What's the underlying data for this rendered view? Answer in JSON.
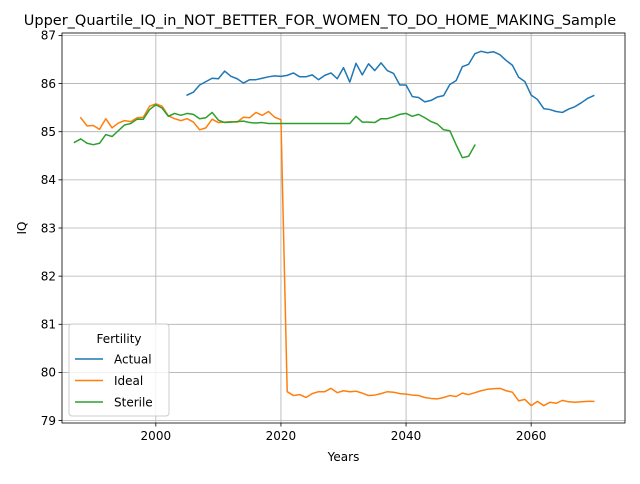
{
  "chart_data": {
    "type": "line",
    "title": "Upper_Quartile_IQ_in_NOT_BETTER_FOR_WOMEN_TO_DO_HOME_MAKING_Sample",
    "xlabel": "Years",
    "ylabel": "IQ",
    "xlim": [
      1985,
      2075
    ],
    "ylim": [
      78.95,
      87.05
    ],
    "xticks": [
      2000,
      2020,
      2040,
      2060
    ],
    "yticks": [
      79,
      80,
      81,
      82,
      83,
      84,
      85,
      86,
      87
    ],
    "grid": true,
    "legend": {
      "title": "Fertility",
      "position": "lower-left"
    },
    "series": [
      {
        "name": "Actual",
        "color": "#1f77b4",
        "points": [
          [
            2005,
            85.76
          ],
          [
            2006,
            85.82
          ],
          [
            2007,
            85.97
          ],
          [
            2008,
            86.04
          ],
          [
            2009,
            86.11
          ],
          [
            2010,
            86.1
          ],
          [
            2011,
            86.26
          ],
          [
            2012,
            86.15
          ],
          [
            2013,
            86.1
          ],
          [
            2014,
            86.01
          ],
          [
            2015,
            86.08
          ],
          [
            2016,
            86.08
          ],
          [
            2017,
            86.11
          ],
          [
            2018,
            86.14
          ],
          [
            2019,
            86.16
          ],
          [
            2020,
            86.15
          ],
          [
            2021,
            86.17
          ],
          [
            2022,
            86.22
          ],
          [
            2023,
            86.14
          ],
          [
            2024,
            86.14
          ],
          [
            2025,
            86.18
          ],
          [
            2026,
            86.08
          ],
          [
            2027,
            86.17
          ],
          [
            2028,
            86.22
          ],
          [
            2029,
            86.1
          ],
          [
            2030,
            86.33
          ],
          [
            2031,
            86.03
          ],
          [
            2032,
            86.42
          ],
          [
            2033,
            86.18
          ],
          [
            2034,
            86.41
          ],
          [
            2035,
            86.27
          ],
          [
            2036,
            86.43
          ],
          [
            2037,
            86.27
          ],
          [
            2038,
            86.21
          ],
          [
            2039,
            85.97
          ],
          [
            2040,
            85.97
          ],
          [
            2041,
            85.73
          ],
          [
            2042,
            85.71
          ],
          [
            2043,
            85.62
          ],
          [
            2044,
            85.65
          ],
          [
            2045,
            85.72
          ],
          [
            2046,
            85.75
          ],
          [
            2047,
            85.98
          ],
          [
            2048,
            86.06
          ],
          [
            2049,
            86.35
          ],
          [
            2050,
            86.4
          ],
          [
            2051,
            86.62
          ],
          [
            2052,
            86.67
          ],
          [
            2053,
            86.64
          ],
          [
            2054,
            86.66
          ],
          [
            2055,
            86.6
          ],
          [
            2056,
            86.48
          ],
          [
            2057,
            86.38
          ],
          [
            2058,
            86.13
          ],
          [
            2059,
            86.04
          ],
          [
            2060,
            85.76
          ],
          [
            2061,
            85.67
          ],
          [
            2062,
            85.48
          ],
          [
            2063,
            85.46
          ],
          [
            2064,
            85.42
          ],
          [
            2065,
            85.4
          ],
          [
            2066,
            85.47
          ],
          [
            2067,
            85.52
          ],
          [
            2068,
            85.6
          ],
          [
            2069,
            85.69
          ],
          [
            2070,
            85.75
          ]
        ]
      },
      {
        "name": "Ideal",
        "color": "#ff7f0e",
        "points": [
          [
            1988,
            85.29
          ],
          [
            1989,
            85.12
          ],
          [
            1990,
            85.13
          ],
          [
            1991,
            85.05
          ],
          [
            1992,
            85.27
          ],
          [
            1993,
            85.08
          ],
          [
            1994,
            85.18
          ],
          [
            1995,
            85.23
          ],
          [
            1996,
            85.21
          ],
          [
            1997,
            85.29
          ],
          [
            1998,
            85.3
          ],
          [
            1999,
            85.53
          ],
          [
            2000,
            85.58
          ],
          [
            2001,
            85.53
          ],
          [
            2002,
            85.33
          ],
          [
            2003,
            85.27
          ],
          [
            2004,
            85.23
          ],
          [
            2005,
            85.27
          ],
          [
            2006,
            85.2
          ],
          [
            2007,
            85.04
          ],
          [
            2008,
            85.08
          ],
          [
            2009,
            85.26
          ],
          [
            2010,
            85.19
          ],
          [
            2011,
            85.2
          ],
          [
            2012,
            85.21
          ],
          [
            2013,
            85.2
          ],
          [
            2014,
            85.3
          ],
          [
            2015,
            85.29
          ],
          [
            2016,
            85.4
          ],
          [
            2017,
            85.34
          ],
          [
            2018,
            85.42
          ],
          [
            2019,
            85.3
          ],
          [
            2020,
            85.25
          ],
          [
            2021,
            79.6
          ],
          [
            2022,
            79.52
          ],
          [
            2023,
            79.54
          ],
          [
            2024,
            79.48
          ],
          [
            2025,
            79.56
          ],
          [
            2026,
            79.6
          ],
          [
            2027,
            79.6
          ],
          [
            2028,
            79.67
          ],
          [
            2029,
            79.58
          ],
          [
            2030,
            79.62
          ],
          [
            2031,
            79.6
          ],
          [
            2032,
            79.61
          ],
          [
            2033,
            79.57
          ],
          [
            2034,
            79.52
          ],
          [
            2035,
            79.53
          ],
          [
            2036,
            79.56
          ],
          [
            2037,
            79.6
          ],
          [
            2038,
            79.59
          ],
          [
            2039,
            79.56
          ],
          [
            2040,
            79.55
          ],
          [
            2041,
            79.53
          ],
          [
            2042,
            79.52
          ],
          [
            2043,
            79.48
          ],
          [
            2044,
            79.46
          ],
          [
            2045,
            79.45
          ],
          [
            2046,
            79.48
          ],
          [
            2047,
            79.52
          ],
          [
            2048,
            79.5
          ],
          [
            2049,
            79.57
          ],
          [
            2050,
            79.54
          ],
          [
            2051,
            79.58
          ],
          [
            2052,
            79.62
          ],
          [
            2053,
            79.65
          ],
          [
            2054,
            79.66
          ],
          [
            2055,
            79.67
          ],
          [
            2056,
            79.62
          ],
          [
            2057,
            79.59
          ],
          [
            2058,
            79.41
          ],
          [
            2059,
            79.44
          ],
          [
            2060,
            79.31
          ],
          [
            2061,
            79.4
          ],
          [
            2062,
            79.31
          ],
          [
            2063,
            79.38
          ],
          [
            2064,
            79.36
          ],
          [
            2065,
            79.42
          ],
          [
            2066,
            79.39
          ],
          [
            2067,
            79.38
          ],
          [
            2068,
            79.39
          ],
          [
            2069,
            79.4
          ],
          [
            2070,
            79.4
          ]
        ]
      },
      {
        "name": "Sterile",
        "color": "#2ca02c",
        "points": [
          [
            1987,
            84.78
          ],
          [
            1988,
            84.85
          ],
          [
            1989,
            84.76
          ],
          [
            1990,
            84.73
          ],
          [
            1991,
            84.76
          ],
          [
            1992,
            84.94
          ],
          [
            1993,
            84.9
          ],
          [
            1994,
            85.02
          ],
          [
            1995,
            85.14
          ],
          [
            1996,
            85.17
          ],
          [
            1997,
            85.26
          ],
          [
            1998,
            85.26
          ],
          [
            1999,
            85.46
          ],
          [
            2000,
            85.56
          ],
          [
            2001,
            85.49
          ],
          [
            2002,
            85.32
          ],
          [
            2003,
            85.38
          ],
          [
            2004,
            85.34
          ],
          [
            2005,
            85.38
          ],
          [
            2006,
            85.36
          ],
          [
            2007,
            85.27
          ],
          [
            2008,
            85.29
          ],
          [
            2009,
            85.4
          ],
          [
            2010,
            85.24
          ],
          [
            2011,
            85.19
          ],
          [
            2012,
            85.2
          ],
          [
            2013,
            85.21
          ],
          [
            2014,
            85.22
          ],
          [
            2015,
            85.19
          ],
          [
            2016,
            85.18
          ],
          [
            2017,
            85.19
          ],
          [
            2018,
            85.17
          ],
          [
            2019,
            85.17
          ],
          [
            2020,
            85.17
          ],
          [
            2021,
            85.17
          ],
          [
            2022,
            85.17
          ],
          [
            2023,
            85.17
          ],
          [
            2024,
            85.17
          ],
          [
            2025,
            85.17
          ],
          [
            2026,
            85.17
          ],
          [
            2027,
            85.17
          ],
          [
            2028,
            85.17
          ],
          [
            2029,
            85.17
          ],
          [
            2030,
            85.17
          ],
          [
            2031,
            85.17
          ],
          [
            2032,
            85.32
          ],
          [
            2033,
            85.2
          ],
          [
            2034,
            85.2
          ],
          [
            2035,
            85.19
          ],
          [
            2036,
            85.27
          ],
          [
            2037,
            85.27
          ],
          [
            2038,
            85.31
          ],
          [
            2039,
            85.36
          ],
          [
            2040,
            85.38
          ],
          [
            2041,
            85.32
          ],
          [
            2042,
            85.36
          ],
          [
            2043,
            85.29
          ],
          [
            2044,
            85.21
          ],
          [
            2045,
            85.16
          ],
          [
            2046,
            85.04
          ],
          [
            2047,
            85.02
          ],
          [
            2048,
            84.73
          ],
          [
            2049,
            84.46
          ],
          [
            2050,
            84.49
          ],
          [
            2051,
            84.72
          ]
        ]
      }
    ]
  }
}
